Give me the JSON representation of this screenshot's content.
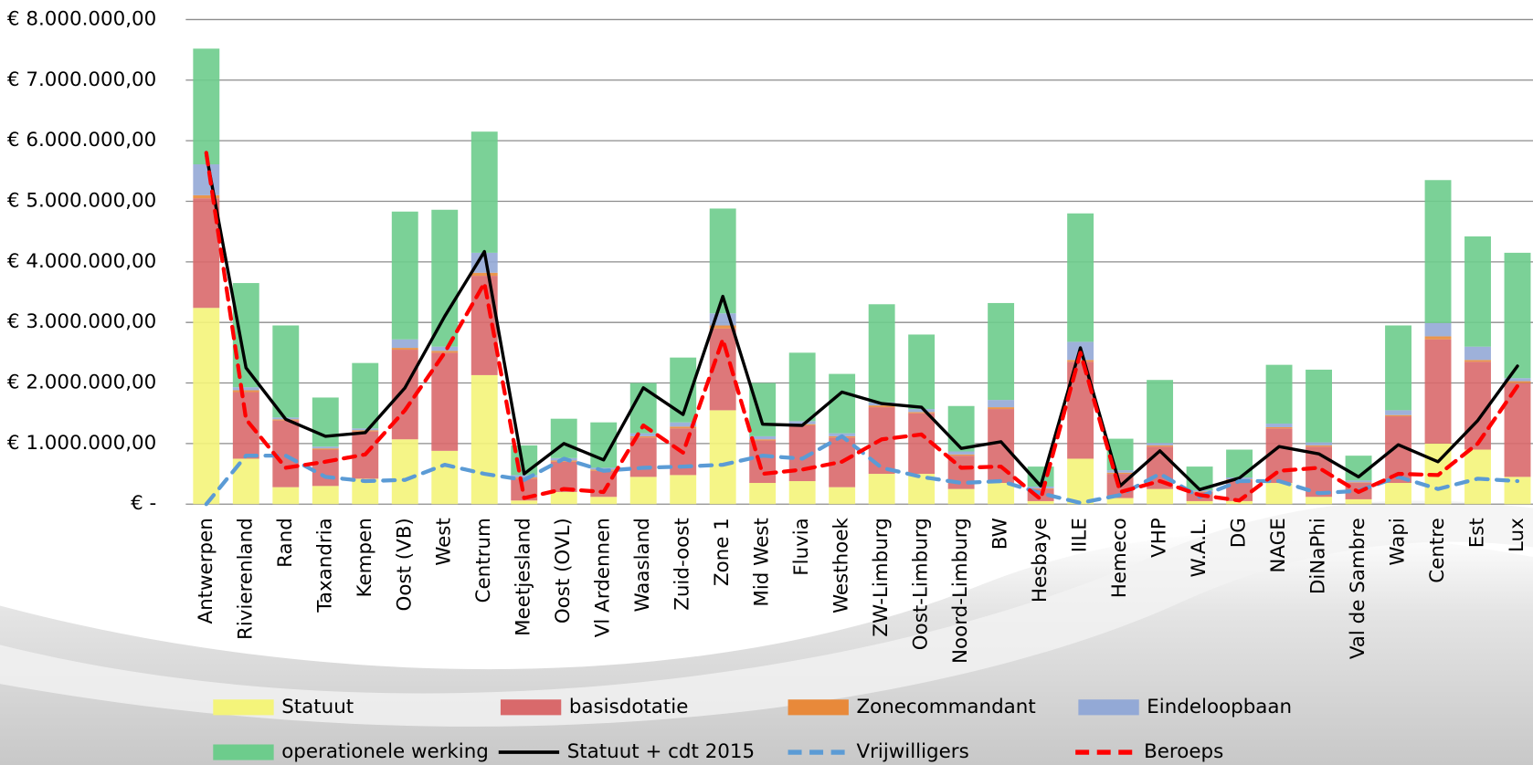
{
  "chart_data": {
    "type": "bar",
    "stacked": true,
    "grid": true,
    "legend": "bottom",
    "ylim": [
      0,
      8000000
    ],
    "yticks": [
      {
        "value": 0,
        "label": "€ -"
      },
      {
        "value": 1000000,
        "label": "€ 1.000.000,00"
      },
      {
        "value": 2000000,
        "label": "€ 2.000.000,00"
      },
      {
        "value": 3000000,
        "label": "€ 3.000.000,00"
      },
      {
        "value": 4000000,
        "label": "€ 4.000.000,00"
      },
      {
        "value": 5000000,
        "label": "€ 5.000.000,00"
      },
      {
        "value": 6000000,
        "label": "€ 6.000.000,00"
      },
      {
        "value": 7000000,
        "label": "€ 7.000.000,00"
      },
      {
        "value": 8000000,
        "label": "€ 8.000.000,00"
      }
    ],
    "categories": [
      "Antwerpen",
      "Rivierenland",
      "Rand",
      "Taxandria",
      "Kempen",
      "Oost (VB)",
      "West",
      "Centrum",
      "Meetjesland",
      "Oost (OVL)",
      "Vl Ardennen",
      "Waasland",
      "Zuid-oost",
      "Zone 1",
      "Mid West",
      "Fluvia",
      "Westhoek",
      "ZW-Limburg",
      "Oost-Limburg",
      "Noord-Limburg",
      "BW",
      "Hesbaye",
      "IILE",
      "Hemeco",
      "VHP",
      "W.A.L.",
      "DG",
      "NAGE",
      "DiNaPhi",
      "Val de Sambre",
      "Wapi",
      "Centre",
      "Est",
      "Lux"
    ],
    "series": [
      {
        "name": "Statuut",
        "type": "bar",
        "color": "#f4f47a",
        "values": [
          3240000,
          750000,
          280000,
          300000,
          420000,
          1070000,
          880000,
          2130000,
          60000,
          200000,
          120000,
          450000,
          480000,
          1550000,
          350000,
          380000,
          280000,
          500000,
          500000,
          250000,
          350000,
          50000,
          750000,
          100000,
          250000,
          50000,
          50000,
          350000,
          120000,
          80000,
          350000,
          1000000,
          900000,
          450000
        ]
      },
      {
        "name": "basisdotatie",
        "type": "bar",
        "color": "#d9696b",
        "values": [
          1810000,
          1100000,
          1100000,
          600000,
          780000,
          1480000,
          1620000,
          1640000,
          360000,
          500000,
          430000,
          650000,
          770000,
          1350000,
          700000,
          920000,
          820000,
          1100000,
          1000000,
          550000,
          1220000,
          200000,
          1600000,
          400000,
          700000,
          150000,
          350000,
          900000,
          830000,
          270000,
          1100000,
          1720000,
          1450000,
          1550000
        ]
      },
      {
        "name": "Zonecommandant",
        "type": "bar",
        "color": "#e8893a",
        "values": [
          50000,
          30000,
          20000,
          20000,
          20000,
          30000,
          30000,
          50000,
          20000,
          20000,
          20000,
          20000,
          30000,
          50000,
          20000,
          20000,
          20000,
          30000,
          20000,
          20000,
          30000,
          10000,
          30000,
          20000,
          20000,
          10000,
          10000,
          20000,
          20000,
          10000,
          20000,
          50000,
          30000,
          30000
        ]
      },
      {
        "name": "Eindeloopbaan",
        "type": "bar",
        "color": "#93a9d6",
        "values": [
          510000,
          50000,
          30000,
          30000,
          30000,
          140000,
          70000,
          330000,
          40000,
          40000,
          30000,
          50000,
          70000,
          200000,
          50000,
          50000,
          50000,
          50000,
          50000,
          50000,
          120000,
          30000,
          300000,
          40000,
          40000,
          20000,
          30000,
          60000,
          50000,
          30000,
          80000,
          220000,
          220000,
          50000
        ]
      },
      {
        "name": "operationele werking",
        "type": "bar",
        "color": "#6dcc8c",
        "values": [
          1910000,
          1720000,
          1520000,
          810000,
          1080000,
          2110000,
          2260000,
          2000000,
          490000,
          650000,
          750000,
          830000,
          1070000,
          1730000,
          880000,
          1130000,
          980000,
          1620000,
          1230000,
          750000,
          1600000,
          330000,
          2120000,
          520000,
          1040000,
          390000,
          460000,
          970000,
          1200000,
          410000,
          1400000,
          2360000,
          1820000,
          2070000
        ]
      },
      {
        "name": "Statuut + cdt 2015",
        "type": "line",
        "color": "#000000",
        "dash": false,
        "values": [
          5770000,
          2250000,
          1400000,
          1120000,
          1180000,
          1920000,
          3100000,
          4170000,
          500000,
          1000000,
          730000,
          1920000,
          1480000,
          3430000,
          1320000,
          1300000,
          1850000,
          1660000,
          1600000,
          920000,
          1030000,
          300000,
          2580000,
          300000,
          880000,
          240000,
          430000,
          950000,
          830000,
          450000,
          980000,
          700000,
          1380000,
          2280000
        ]
      },
      {
        "name": "Vrijwilligers",
        "type": "line",
        "color": "#5b9bd5",
        "dash": true,
        "values": [
          0,
          800000,
          800000,
          450000,
          380000,
          400000,
          650000,
          500000,
          400000,
          750000,
          550000,
          600000,
          620000,
          650000,
          800000,
          750000,
          1120000,
          600000,
          450000,
          350000,
          380000,
          180000,
          20000,
          150000,
          500000,
          120000,
          380000,
          380000,
          180000,
          220000,
          450000,
          250000,
          420000,
          380000
        ]
      },
      {
        "name": "Beroeps",
        "type": "line",
        "color": "#ff0000",
        "dash": true,
        "values": [
          5800000,
          1400000,
          600000,
          700000,
          820000,
          1550000,
          2500000,
          3650000,
          100000,
          250000,
          200000,
          1300000,
          850000,
          2720000,
          500000,
          570000,
          700000,
          1070000,
          1150000,
          600000,
          620000,
          80000,
          2500000,
          200000,
          380000,
          150000,
          60000,
          550000,
          600000,
          200000,
          500000,
          480000,
          1000000,
          1950000
        ]
      }
    ]
  }
}
